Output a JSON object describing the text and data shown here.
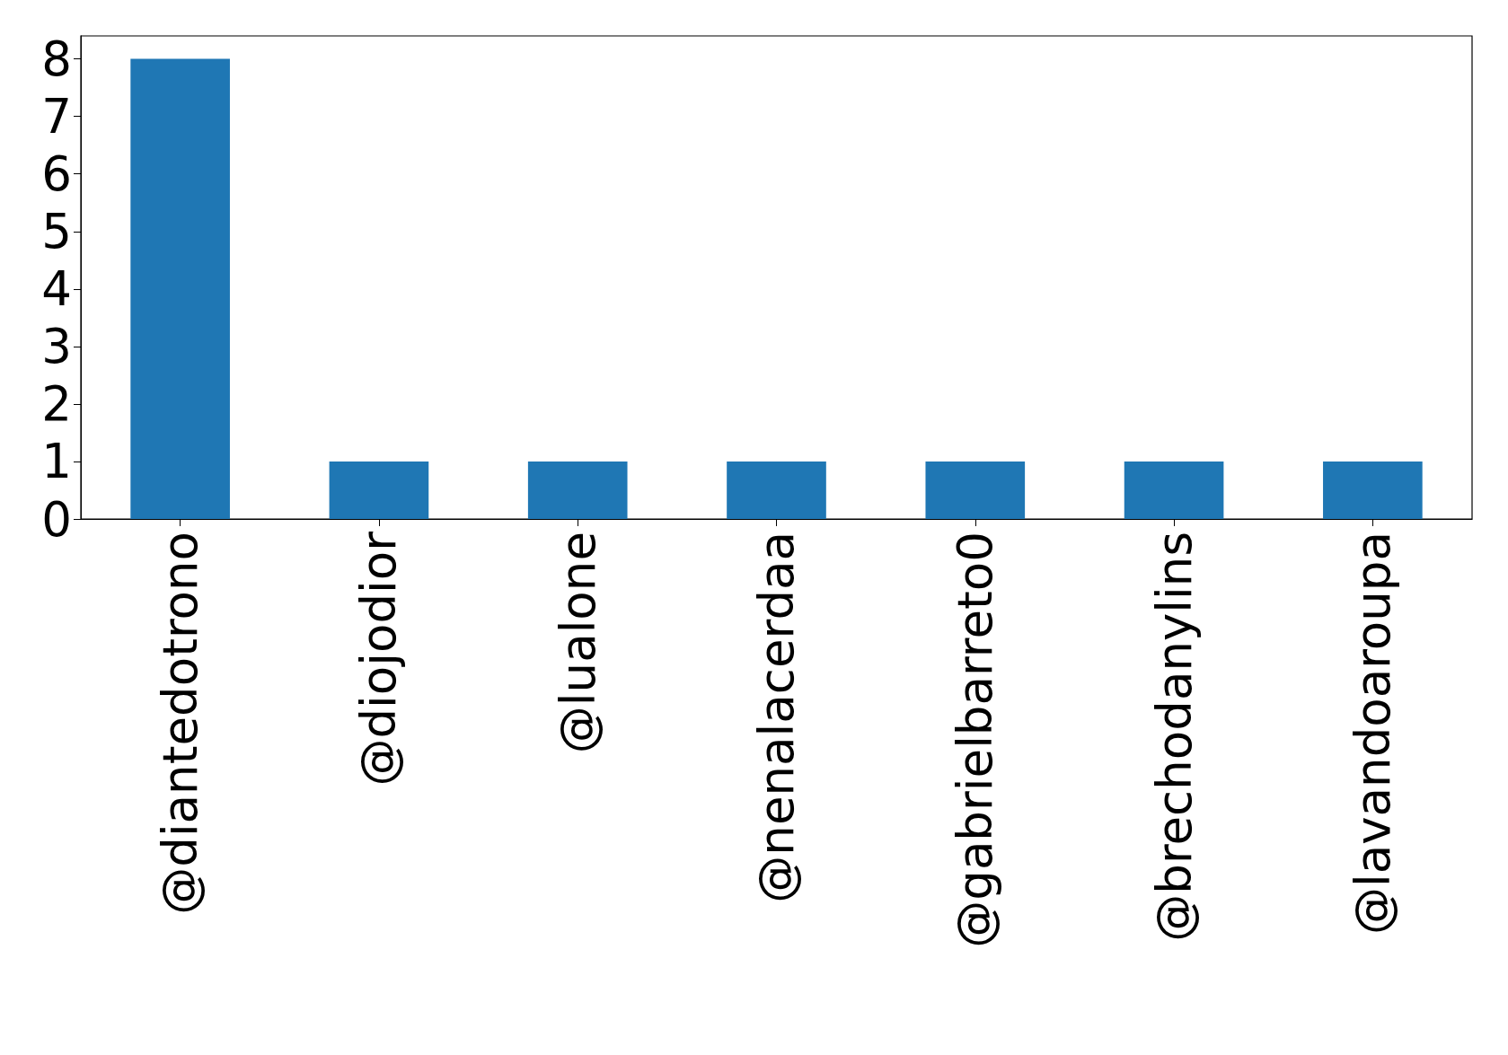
{
  "chart_data": {
    "type": "bar",
    "categories": [
      "@diantedotrono",
      "@diojodior",
      "@lualone",
      "@nenalacerdaa",
      "@gabrielbarreto0",
      "@brechodanylins",
      "@lavandoaroupa"
    ],
    "values": [
      8,
      1,
      1,
      1,
      1,
      1,
      1
    ],
    "color": "#1f77b4",
    "ylim": [
      0,
      8.4
    ],
    "yticks": [
      0,
      1,
      2,
      3,
      4,
      5,
      6,
      7,
      8
    ],
    "grid": false
  }
}
